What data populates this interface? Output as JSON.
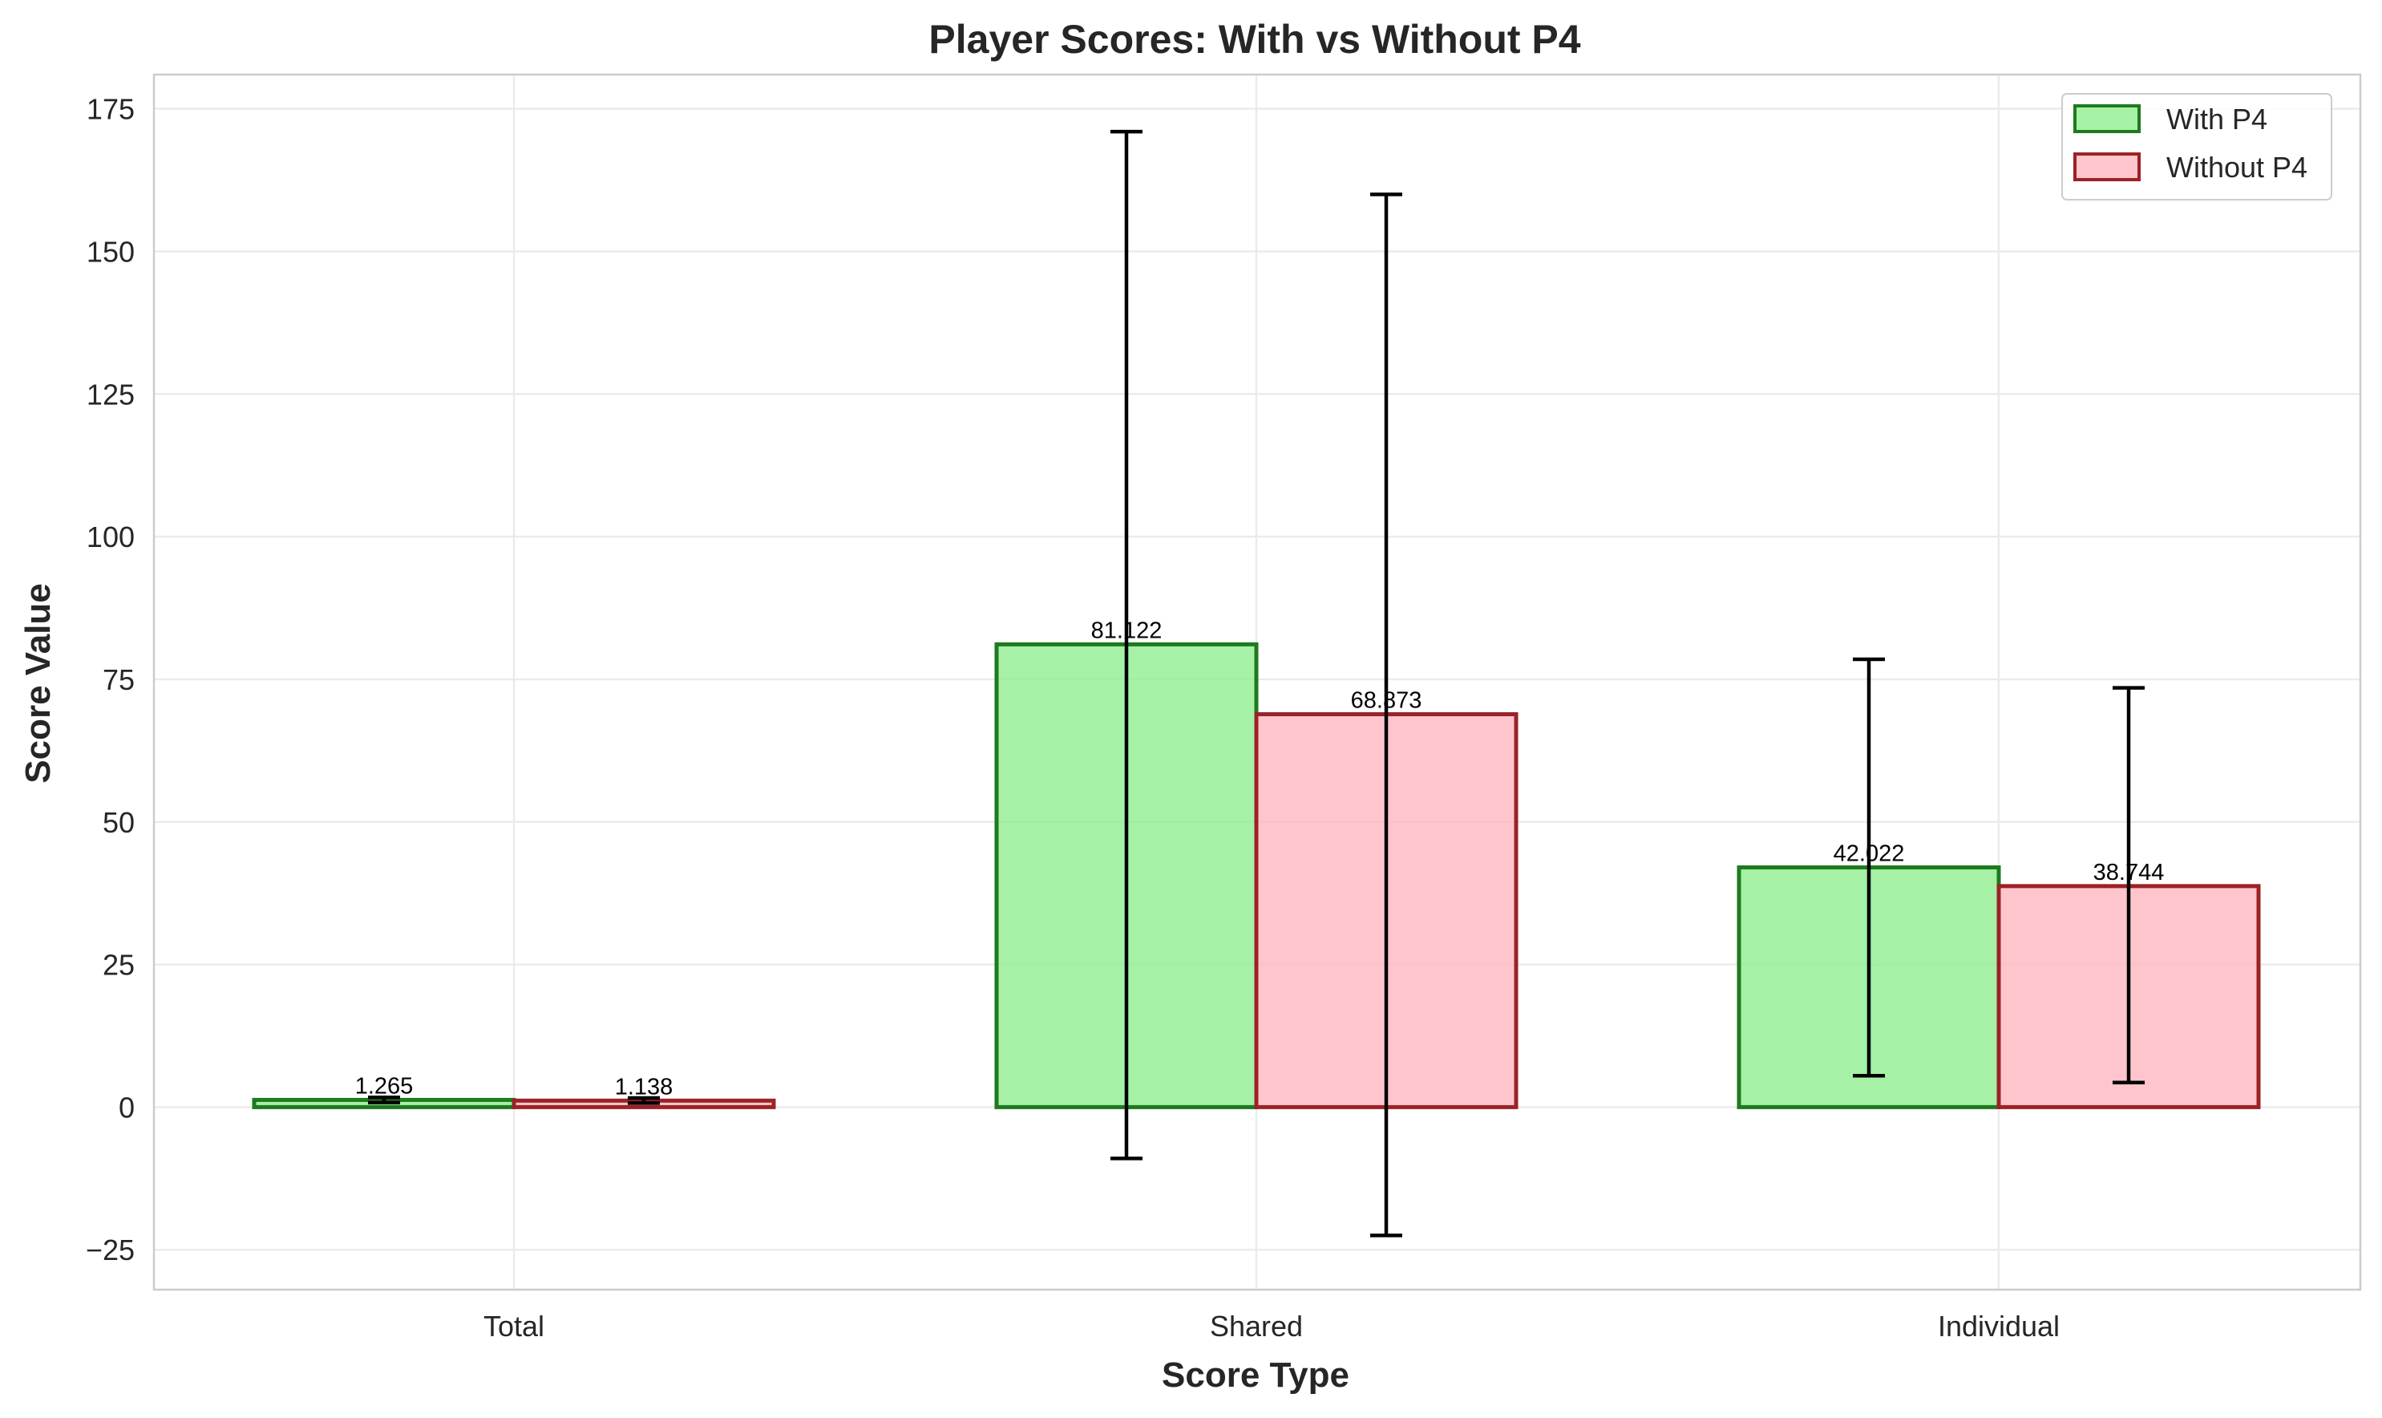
{
  "chart_data": {
    "type": "bar",
    "title": "Player Scores: With vs Without P4",
    "xlabel": "Score Type",
    "ylabel": "Score Value",
    "categories": [
      "Total",
      "Shared",
      "Individual"
    ],
    "ylim": [
      -32,
      181
    ],
    "yticks": [
      -25,
      0,
      25,
      50,
      75,
      100,
      125,
      150,
      175
    ],
    "ytick_labels": [
      "−25",
      "0",
      "25",
      "50",
      "75",
      "100",
      "125",
      "150",
      "175"
    ],
    "grid": true,
    "legend_position": "top-right",
    "series": [
      {
        "name": "With P4",
        "values": [
          1.265,
          81.122,
          42.022
        ],
        "value_labels": [
          "1.265",
          "81.122",
          "42.022"
        ],
        "error_low": [
          0.8,
          -9.0,
          5.5
        ],
        "error_high": [
          1.7,
          171.0,
          78.5
        ],
        "fill": "#90ee90",
        "edge": "#1e7a1e"
      },
      {
        "name": "Without P4",
        "values": [
          1.138,
          68.873,
          38.744
        ],
        "value_labels": [
          "1.138",
          "68.873",
          "38.744"
        ],
        "error_low": [
          0.7,
          -22.5,
          4.3
        ],
        "error_high": [
          1.6,
          160.0,
          73.5
        ],
        "fill": "#ffb6c1",
        "edge": "#9b2226"
      }
    ]
  }
}
